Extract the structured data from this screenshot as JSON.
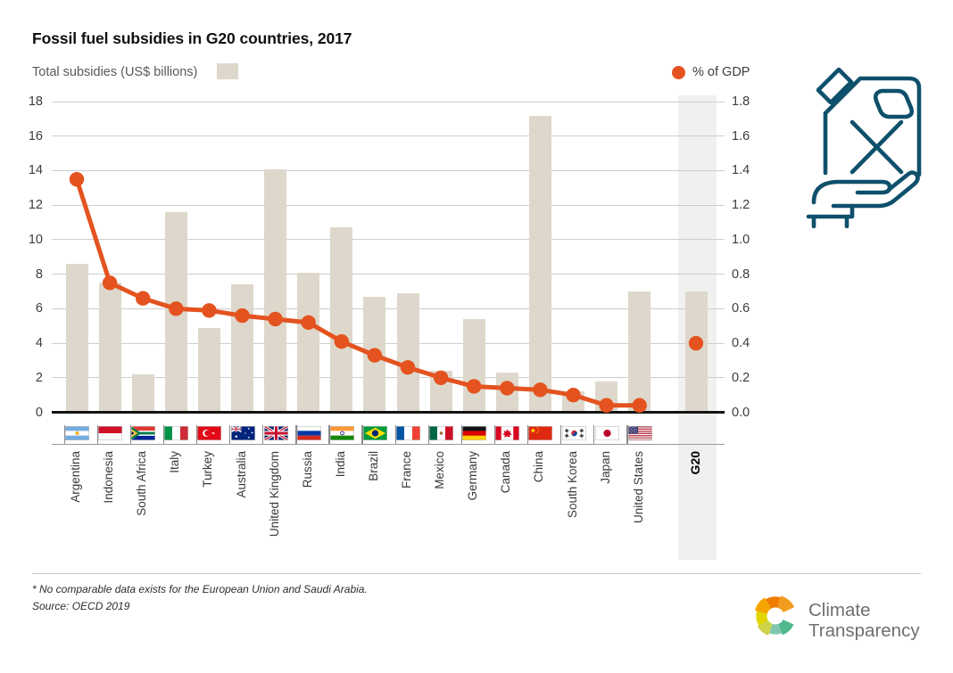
{
  "title": "Fossil fuel subsidies in G20 countries, 2017",
  "legend": {
    "bars_label": "Total subsidies (US$ billions)",
    "dots_label": "% of GDP"
  },
  "footnotes": {
    "note": "* No comparable data exists for the European Union and Saudi Arabia.",
    "source": "Source: OECD 2019"
  },
  "logo": {
    "line1": "Climate",
    "line2": "Transparency"
  },
  "icons": {
    "top_right": "fuel-canister-with-cross-held-by-hand",
    "logo_mark": "segmented-color-wheel-c"
  },
  "colors": {
    "bar": "#ddd8cb",
    "dot_line": "#e4531f",
    "g20_band": "#f0f0ef",
    "grid": "#cdcdcd",
    "axis": "#141414",
    "icon_teal": "#0e506b"
  },
  "chart_data": {
    "type": "bar+line",
    "title": "Fossil fuel subsidies in G20 countries, 2017",
    "left_axis": {
      "label": "Total subsidies (US$ billions)",
      "min": 0,
      "max": 18,
      "tick_step": 2,
      "ticks": [
        0,
        2,
        4,
        6,
        8,
        10,
        12,
        14,
        16,
        18
      ]
    },
    "right_axis": {
      "label": "% of GDP",
      "min": 0,
      "max": 1.8,
      "tick_step": 0.2,
      "ticks": [
        "0.0",
        "0.2",
        "0.4",
        "0.6",
        "0.8",
        "1.0",
        "1.2",
        "1.4",
        "1.6",
        "1.8"
      ]
    },
    "categories": [
      "Argentina",
      "Indonesia",
      "South Africa",
      "Italy",
      "Turkey",
      "Australia",
      "United Kingdom",
      "Russia",
      "India",
      "Brazil",
      "France",
      "Mexico",
      "Germany",
      "Canada",
      "China",
      "South Korea",
      "Japan",
      "United States",
      "G20"
    ],
    "flags": [
      "ar",
      "id",
      "za",
      "it",
      "tr",
      "au",
      "gb",
      "ru",
      "in",
      "br",
      "fr",
      "mx",
      "de",
      "ca",
      "cn",
      "kr",
      "jp",
      "us",
      null
    ],
    "series": [
      {
        "name": "Total subsidies (US$ billions)",
        "type": "bar",
        "values": [
          8.6,
          7.5,
          2.2,
          11.6,
          4.9,
          7.4,
          14.1,
          8.1,
          10.7,
          6.7,
          6.9,
          2.4,
          5.4,
          2.3,
          17.2,
          1.2,
          1.8,
          7.0,
          7.0
        ]
      },
      {
        "name": "% of GDP",
        "type": "point",
        "values": [
          1.35,
          0.75,
          0.66,
          0.6,
          0.59,
          0.56,
          0.54,
          0.52,
          0.41,
          0.33,
          0.26,
          0.2,
          0.15,
          0.14,
          0.13,
          0.1,
          0.04,
          0.04,
          0.4
        ]
      }
    ],
    "layout": {
      "grid": true,
      "legend_position": "top",
      "g20_column_highlighted": true,
      "gdp_line_connects_countries_only": true
    }
  }
}
